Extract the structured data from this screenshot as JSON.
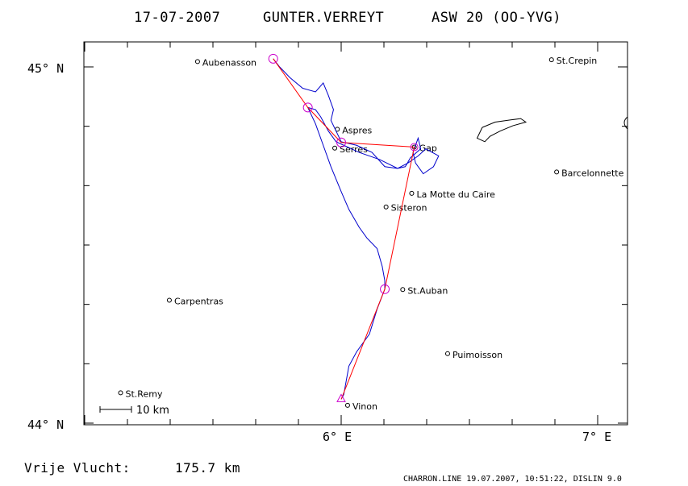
{
  "header": {
    "title_date": "17-07-2007",
    "title_pilot": "GUNTER.VERREYT",
    "title_glider": "ASW 20 (OO-YVG)"
  },
  "axes": {
    "lat_top": "45° N",
    "lat_bottom": "44° N",
    "lon_left": "6° E",
    "lon_right": "7° E"
  },
  "towns": [
    {
      "name": "Aubenasson",
      "lon": 5.44,
      "lat": 45.015
    },
    {
      "name": "St.Crepin",
      "lon": 6.82,
      "lat": 45.02
    },
    {
      "name": "Aspres",
      "lon": 5.985,
      "lat": 44.825
    },
    {
      "name": "Serres",
      "lon": 5.975,
      "lat": 44.772
    },
    {
      "name": "Gap",
      "lon": 6.285,
      "lat": 44.775
    },
    {
      "name": "Barcelonnette",
      "lon": 6.84,
      "lat": 44.705
    },
    {
      "name": "La Motte du Caire",
      "lon": 6.275,
      "lat": 44.645
    },
    {
      "name": "Sisteron",
      "lon": 6.175,
      "lat": 44.607
    },
    {
      "name": "St.Auban",
      "lon": 6.24,
      "lat": 44.375
    },
    {
      "name": "Carpentras",
      "lon": 5.33,
      "lat": 44.345
    },
    {
      "name": "Puimoisson",
      "lon": 6.415,
      "lat": 44.195
    },
    {
      "name": "St.Remy",
      "lon": 5.14,
      "lat": 44.085
    },
    {
      "name": "Vinon",
      "lon": 6.025,
      "lat": 44.05
    }
  ],
  "task": {
    "turnpoints": [
      {
        "lon": 5.735,
        "lat": 45.023
      },
      {
        "lon": 5.87,
        "lat": 44.886
      },
      {
        "lon": 6.0,
        "lat": 44.788
      },
      {
        "lon": 6.285,
        "lat": 44.775
      },
      {
        "lon": 6.17,
        "lat": 44.376
      },
      {
        "lon": 6.0,
        "lat": 44.067
      }
    ]
  },
  "track": [
    [
      5.735,
      45.023
    ],
    [
      5.76,
      45.0
    ],
    [
      5.8,
      44.97
    ],
    [
      5.85,
      44.94
    ],
    [
      5.9,
      44.93
    ],
    [
      5.93,
      44.955
    ],
    [
      5.95,
      44.92
    ],
    [
      5.97,
      44.88
    ],
    [
      5.96,
      44.85
    ],
    [
      5.98,
      44.82
    ],
    [
      6.0,
      44.79
    ],
    [
      6.06,
      44.78
    ],
    [
      6.12,
      44.76
    ],
    [
      6.17,
      44.72
    ],
    [
      6.22,
      44.715
    ],
    [
      6.26,
      44.73
    ],
    [
      6.3,
      44.75
    ],
    [
      6.33,
      44.77
    ],
    [
      6.38,
      44.75
    ],
    [
      6.36,
      44.72
    ],
    [
      6.32,
      44.7
    ],
    [
      6.29,
      44.73
    ],
    [
      6.28,
      44.76
    ],
    [
      6.3,
      44.8
    ],
    [
      6.31,
      44.77
    ],
    [
      6.27,
      44.745
    ],
    [
      6.25,
      44.72
    ],
    [
      6.22,
      44.715
    ],
    [
      6.15,
      44.74
    ],
    [
      6.07,
      44.76
    ],
    [
      6.01,
      44.78
    ],
    [
      5.98,
      44.79
    ],
    [
      5.95,
      44.82
    ],
    [
      5.92,
      44.86
    ],
    [
      5.9,
      44.88
    ],
    [
      5.87,
      44.886
    ],
    [
      5.9,
      44.84
    ],
    [
      5.93,
      44.78
    ],
    [
      5.96,
      44.72
    ],
    [
      6.0,
      44.65
    ],
    [
      6.03,
      44.6
    ],
    [
      6.07,
      44.55
    ],
    [
      6.1,
      44.52
    ],
    [
      6.14,
      44.49
    ],
    [
      6.16,
      44.44
    ],
    [
      6.17,
      44.4
    ],
    [
      6.17,
      44.376
    ],
    [
      6.14,
      44.32
    ],
    [
      6.11,
      44.25
    ],
    [
      6.06,
      44.2
    ],
    [
      6.03,
      44.16
    ],
    [
      6.02,
      44.12
    ],
    [
      6.01,
      44.08
    ],
    [
      6.0,
      44.067
    ]
  ],
  "lake": [
    [
      6.55,
      44.83
    ],
    [
      6.6,
      44.845
    ],
    [
      6.65,
      44.85
    ],
    [
      6.7,
      44.855
    ],
    [
      6.72,
      44.845
    ],
    [
      6.67,
      44.835
    ],
    [
      6.62,
      44.82
    ],
    [
      6.58,
      44.805
    ],
    [
      6.56,
      44.79
    ],
    [
      6.53,
      44.8
    ]
  ],
  "scale": {
    "label": "10 km"
  },
  "footer": {
    "distance_label": "Vrije Vlucht:",
    "distance_value": "175.7 km",
    "credit": "CHARRON.LINE 19.07.2007, 10:51:22, DISLIN 9.0"
  },
  "colors": {
    "track": "#0000cc",
    "task": "#ff0000",
    "turnpoint": "#cc00cc",
    "frame": "#000000"
  }
}
